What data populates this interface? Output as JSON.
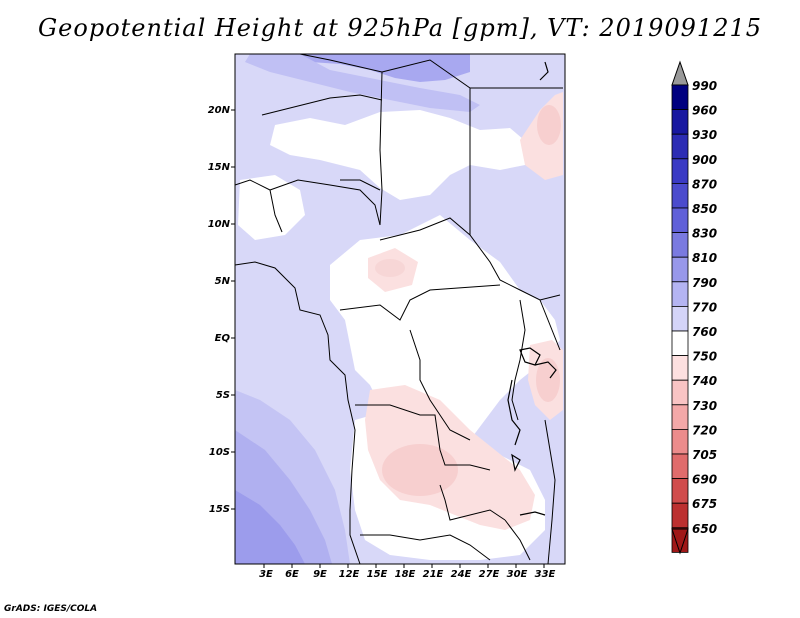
{
  "title": "Geopotential Height at 925hPa [gpm], VT: 2019091215",
  "footer": "GrADS: IGES/COLA",
  "map": {
    "lat_labels": [
      "20N",
      "15N",
      "10N",
      "5N",
      "EQ",
      "5S",
      "10S",
      "15S"
    ],
    "lon_labels": [
      "3E",
      "6E",
      "9E",
      "12E",
      "15E",
      "18E",
      "21E",
      "24E",
      "27E",
      "30E",
      "33E"
    ]
  },
  "colorbar": {
    "levels": [
      "990",
      "960",
      "930",
      "900",
      "870",
      "850",
      "830",
      "810",
      "790",
      "770",
      "760",
      "750",
      "740",
      "730",
      "720",
      "705",
      "690",
      "675",
      "650"
    ],
    "colors": [
      "#000080",
      "#1818a0",
      "#2c2cb4",
      "#3a3ac4",
      "#4b4bcd",
      "#6060d8",
      "#7a7ae0",
      "#9898ea",
      "#b4b4f2",
      "#d4d4f8",
      "#ffffff",
      "#fde0e0",
      "#f9c4c4",
      "#f3a8a8",
      "#ec8c8c",
      "#e06c6c",
      "#d04c4c",
      "#bc3030",
      "#a01818"
    ],
    "top_arrow_color": "#999999",
    "bottom_arrow_color": "#a01818"
  }
}
